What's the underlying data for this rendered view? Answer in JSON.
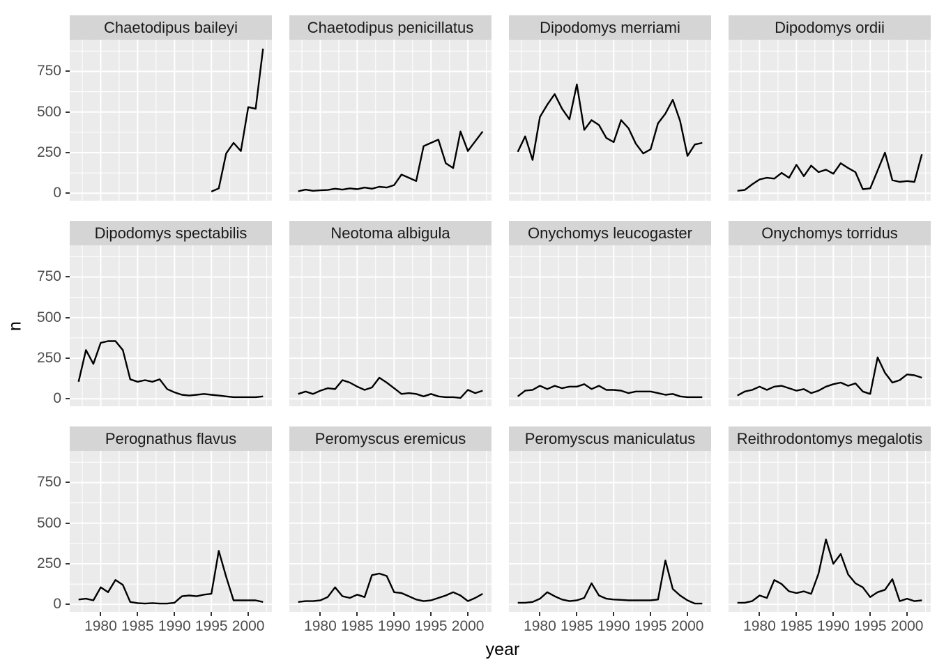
{
  "figure_meta": {
    "y_axis_title": "n",
    "x_axis_title": "year"
  },
  "colors": {
    "panel_bg": "#EBEBEB",
    "strip_bg": "#D5D5D5",
    "grid": "#FFFFFF",
    "line": "#000000",
    "tick_text": "#4D4D4D",
    "strip_text": "#1A1A1A",
    "axis_title_text": "#000000",
    "tick_mark": "#333333",
    "figure_bg": "#FFFFFF"
  },
  "chart_data": {
    "type": "line",
    "title": "",
    "xlabel": "year",
    "ylabel": "n",
    "grid": true,
    "legend": "none",
    "x_domain": [
      1977,
      2002
    ],
    "y_domain": [
      0,
      890
    ],
    "x_ticks": [
      1980,
      1985,
      1990,
      1995,
      2000
    ],
    "y_ticks": [
      0,
      250,
      500,
      750
    ],
    "x_minor": [
      1977.5,
      1982.5,
      1987.5,
      1992.5,
      1997.5,
      2002.5
    ],
    "y_minor": [
      125,
      375,
      625,
      875
    ],
    "facet_layout": {
      "rows": 3,
      "cols": 4
    },
    "facets": [
      {
        "title": "Chaetodipus baileyi",
        "x_start": 1995,
        "values": [
          10,
          30,
          245,
          310,
          260,
          530,
          520,
          890
        ]
      },
      {
        "title": "Chaetodipus penicillatus",
        "x_start": 1977,
        "values": [
          12,
          22,
          15,
          18,
          20,
          28,
          22,
          30,
          25,
          35,
          28,
          40,
          35,
          50,
          115,
          95,
          75,
          290,
          310,
          330,
          185,
          155,
          380,
          260,
          320,
          380
        ]
      },
      {
        "title": "Dipodomys merriami",
        "x_start": 1977,
        "values": [
          255,
          350,
          205,
          470,
          545,
          610,
          520,
          455,
          670,
          390,
          450,
          420,
          340,
          315,
          450,
          400,
          305,
          245,
          270,
          430,
          490,
          575,
          445,
          230,
          300,
          310
        ]
      },
      {
        "title": "Dipodomys ordii",
        "x_start": 1977,
        "values": [
          15,
          20,
          55,
          85,
          95,
          90,
          125,
          95,
          175,
          105,
          170,
          130,
          145,
          120,
          185,
          155,
          130,
          25,
          30,
          140,
          250,
          80,
          70,
          75,
          70,
          240
        ]
      },
      {
        "title": "Dipodomys spectabilis",
        "x_start": 1977,
        "values": [
          105,
          300,
          215,
          345,
          355,
          355,
          300,
          120,
          105,
          115,
          105,
          120,
          60,
          40,
          25,
          20,
          25,
          30,
          25,
          20,
          15,
          10,
          10,
          10,
          10,
          15
        ]
      },
      {
        "title": "Neotoma albigula",
        "x_start": 1977,
        "values": [
          30,
          45,
          30,
          50,
          65,
          60,
          115,
          100,
          75,
          55,
          70,
          130,
          100,
          65,
          30,
          35,
          30,
          15,
          30,
          15,
          10,
          10,
          5,
          55,
          35,
          50
        ]
      },
      {
        "title": "Onychomys leucogaster",
        "x_start": 1977,
        "values": [
          15,
          50,
          55,
          80,
          60,
          80,
          65,
          75,
          75,
          90,
          60,
          80,
          55,
          55,
          50,
          35,
          45,
          45,
          45,
          35,
          25,
          30,
          15,
          10,
          10,
          10
        ]
      },
      {
        "title": "Onychomys torridus",
        "x_start": 1977,
        "values": [
          20,
          45,
          55,
          75,
          55,
          75,
          80,
          65,
          50,
          60,
          35,
          50,
          75,
          90,
          100,
          80,
          95,
          45,
          30,
          255,
          160,
          100,
          115,
          150,
          145,
          130
        ]
      },
      {
        "title": "Perognathus flavus",
        "x_start": 1977,
        "values": [
          30,
          35,
          25,
          105,
          75,
          150,
          120,
          15,
          8,
          5,
          8,
          5,
          5,
          10,
          50,
          55,
          50,
          60,
          65,
          330,
          170,
          25,
          25,
          25,
          25,
          15
        ]
      },
      {
        "title": "Peromyscus eremicus",
        "x_start": 1977,
        "values": [
          15,
          20,
          20,
          25,
          45,
          105,
          50,
          40,
          60,
          45,
          180,
          190,
          175,
          75,
          70,
          50,
          30,
          20,
          25,
          40,
          55,
          75,
          55,
          20,
          40,
          65
        ]
      },
      {
        "title": "Peromyscus maniculatus",
        "x_start": 1977,
        "values": [
          10,
          10,
          15,
          35,
          75,
          50,
          30,
          20,
          25,
          40,
          130,
          55,
          35,
          30,
          28,
          25,
          25,
          25,
          25,
          30,
          270,
          95,
          55,
          25,
          5,
          5
        ]
      },
      {
        "title": "Reithrodontomys megalotis",
        "x_start": 1977,
        "values": [
          10,
          10,
          20,
          55,
          40,
          150,
          125,
          80,
          70,
          80,
          65,
          190,
          400,
          250,
          310,
          185,
          130,
          105,
          45,
          75,
          90,
          155,
          20,
          35,
          20,
          25
        ]
      }
    ]
  }
}
